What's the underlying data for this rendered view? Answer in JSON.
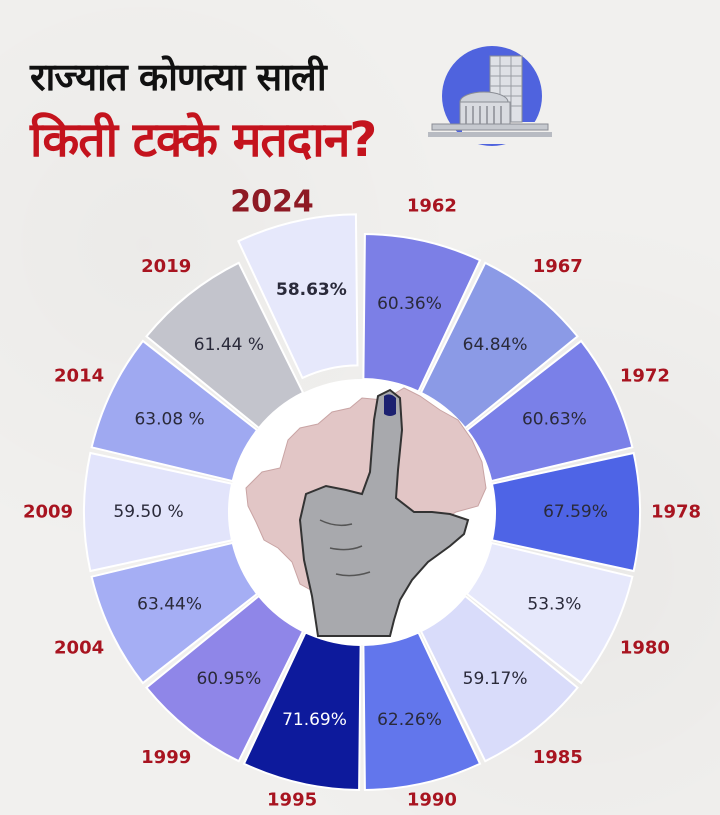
{
  "header": {
    "title_line1": "राज्यात कोणत्या साली",
    "title_line2": "किती टक्के मतदान?"
  },
  "icons": {
    "emblem": "assembly-building-icon",
    "center": "voting-finger-over-map-icon"
  },
  "colors": {
    "title_dark": "#111111",
    "title_red": "#c4131d",
    "year_label": "#a81420",
    "highlight_year": "#8e1a24"
  },
  "chart_data": {
    "type": "pie",
    "style": "donut",
    "highlight": "2024",
    "slices": [
      {
        "year": "1962",
        "value": 60.36,
        "label": "60.36%",
        "color": "#7c7fe6"
      },
      {
        "year": "1967",
        "value": 64.84,
        "label": "64.84%",
        "color": "#8b9ae6"
      },
      {
        "year": "1972",
        "value": 60.63,
        "label": "60.63%",
        "color": "#7a80e8"
      },
      {
        "year": "1978",
        "value": 67.59,
        "label": "67.59%",
        "color": "#4e64e6"
      },
      {
        "year": "1980",
        "value": 53.3,
        "label": "53.3%",
        "color": "#e6e8fb"
      },
      {
        "year": "1985",
        "value": 59.17,
        "label": "59.17%",
        "color": "#d9dcfa"
      },
      {
        "year": "1990",
        "value": 62.26,
        "label": "62.26%",
        "color": "#6276ec"
      },
      {
        "year": "1995",
        "value": 71.69,
        "label": "71.69%",
        "color": "#0d1a9c"
      },
      {
        "year": "1999",
        "value": 60.95,
        "label": "60.95%",
        "color": "#8f86e8"
      },
      {
        "year": "2004",
        "value": 63.44,
        "label": "63.44%",
        "color": "#a5aef4"
      },
      {
        "year": "2009",
        "value": 59.5,
        "label": "59.50 %",
        "color": "#e2e4fb"
      },
      {
        "year": "2014",
        "value": 63.08,
        "label": "63.08 %",
        "color": "#9fa9f1"
      },
      {
        "year": "2019",
        "value": 61.44,
        "label": "61.44 %",
        "color": "#c3c4cc"
      },
      {
        "year": "2024",
        "value": 58.63,
        "label": "58.63%",
        "color": "#e6e8fb"
      }
    ]
  }
}
